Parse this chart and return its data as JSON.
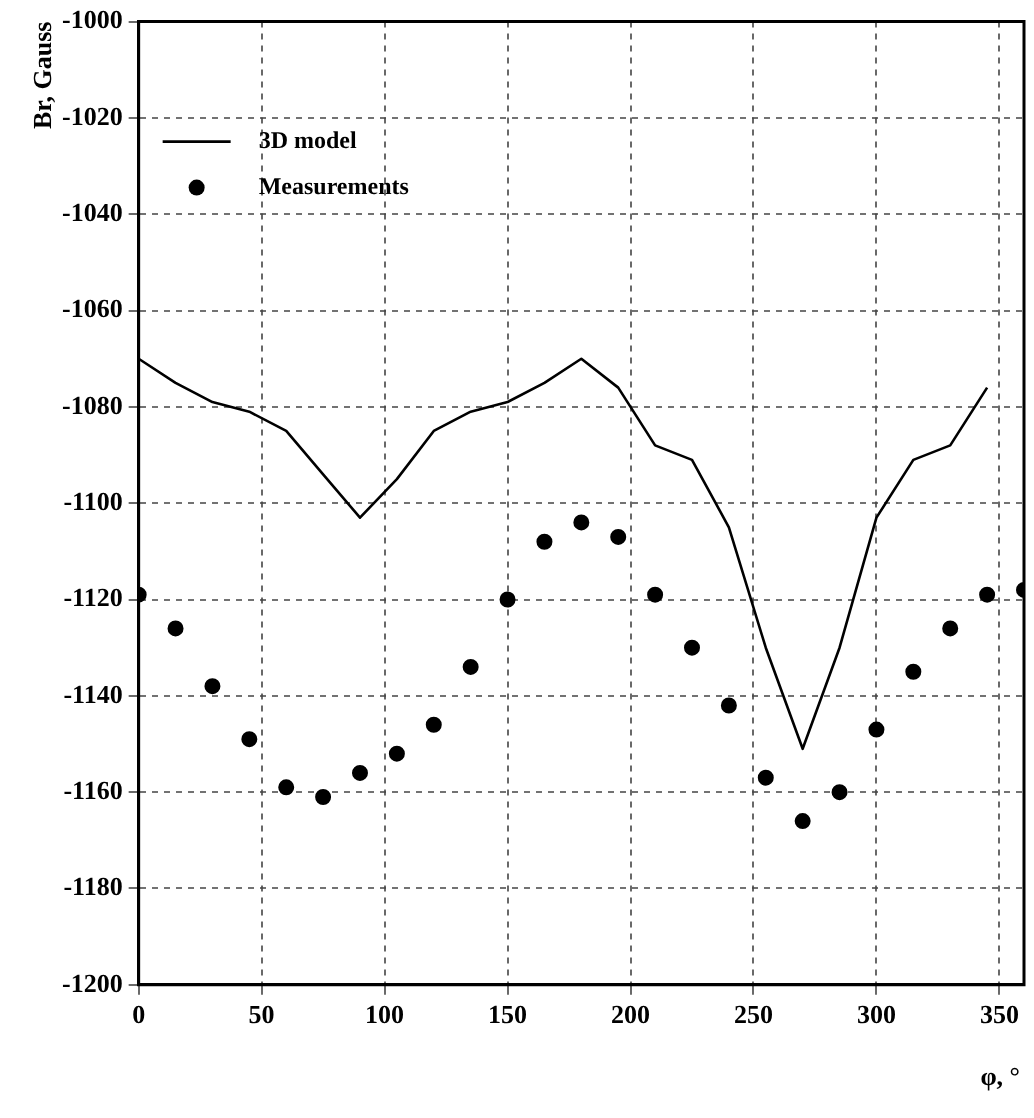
{
  "chart_data": {
    "type": "line",
    "xlabel": "φ, °",
    "ylabel": "Br, Gauss",
    "xlim": [
      0,
      360
    ],
    "xticks": [
      0,
      50,
      100,
      150,
      200,
      250,
      300,
      350
    ],
    "ylim": [
      -1200,
      -1000
    ],
    "yticks": [
      -1200,
      -1180,
      -1160,
      -1140,
      -1120,
      -1100,
      -1080,
      -1060,
      -1040,
      -1020,
      -1000
    ],
    "grid": true,
    "legend": "top left",
    "series": [
      {
        "name": "3D model",
        "color": "#000000",
        "marker": "none",
        "line_style": "solid",
        "x": [
          0,
          15,
          30,
          45,
          60,
          75,
          90,
          105,
          120,
          135,
          150,
          165,
          180,
          195,
          210,
          225,
          240,
          255,
          270,
          285,
          300,
          315,
          330,
          345
        ],
        "values": [
          -1070,
          -1075,
          -1079,
          -1081,
          -1085,
          -1094,
          -1103,
          -1095,
          -1085,
          -1081,
          -1079,
          -1075,
          -1070,
          -1076,
          -1088,
          -1091,
          -1105,
          -1130,
          -1151,
          -1130,
          -1103,
          -1091,
          -1088,
          -1076
        ]
      },
      {
        "name": "Measurements",
        "type": "scatter",
        "color": "#000000",
        "marker": "circle",
        "x": [
          0,
          15,
          30,
          45,
          60,
          75,
          90,
          105,
          120,
          135,
          150,
          165,
          180,
          195,
          210,
          225,
          240,
          255,
          270,
          285,
          300,
          315,
          330,
          345,
          360
        ],
        "values": [
          -1119,
          -1126,
          -1138,
          -1149,
          -1159,
          -1161,
          -1156,
          -1152,
          -1146,
          -1134,
          -1120,
          -1108,
          -1104,
          -1107,
          -1119,
          -1130,
          -1142,
          -1157,
          -1166,
          -1160,
          -1147,
          -1135,
          -1126,
          -1119,
          -1118
        ]
      }
    ]
  }
}
